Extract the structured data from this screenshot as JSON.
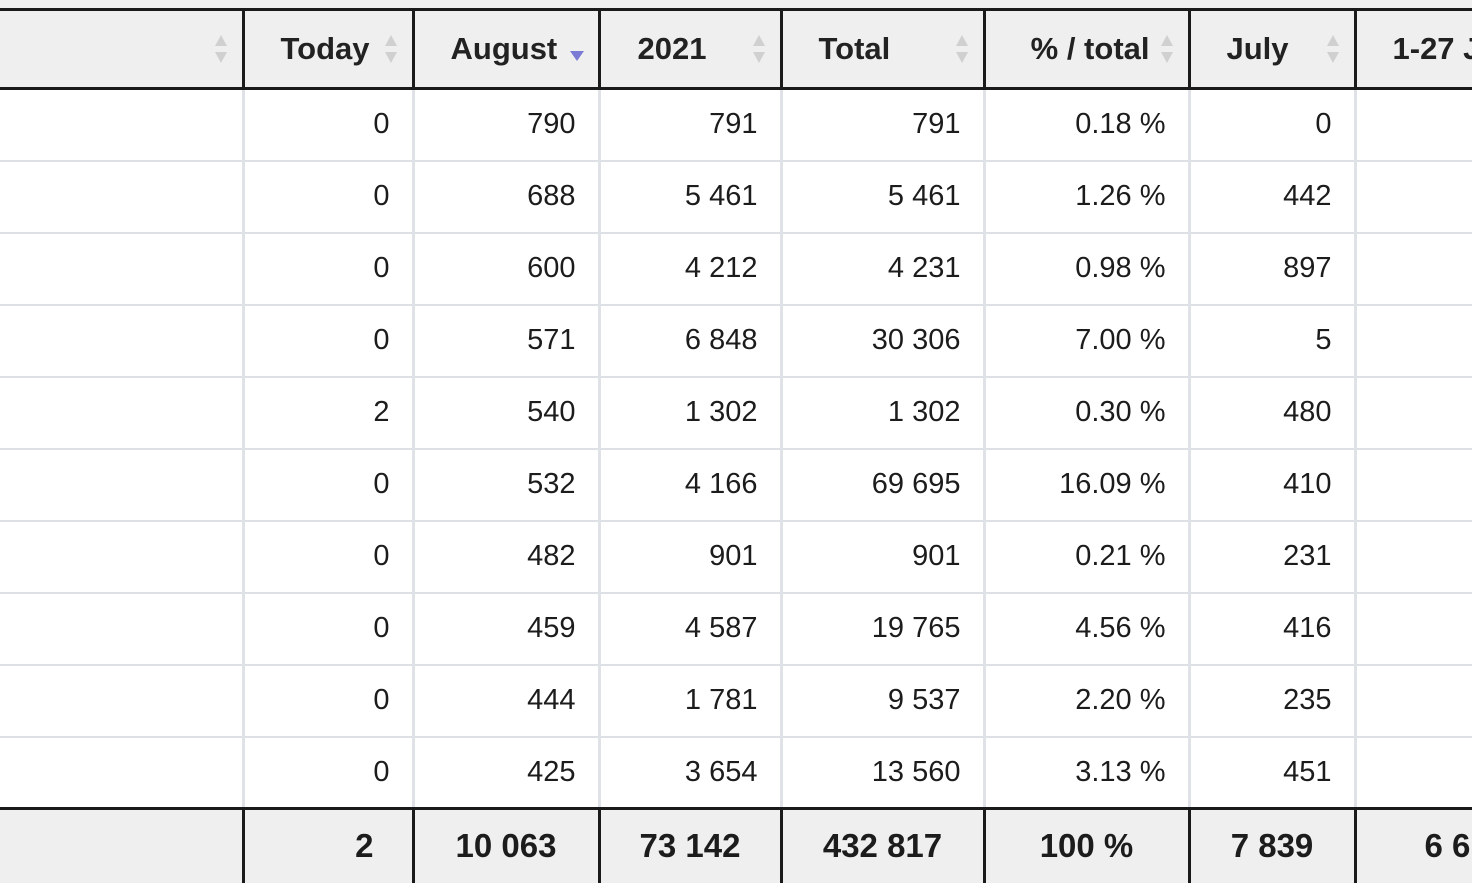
{
  "table": {
    "columns": [
      {
        "key": "label",
        "label": "",
        "sort": "none"
      },
      {
        "key": "today",
        "label": "Today",
        "sort": "none"
      },
      {
        "key": "august",
        "label": "August",
        "sort": "desc"
      },
      {
        "key": "year2021",
        "label": "2021",
        "sort": "none"
      },
      {
        "key": "total",
        "label": "Total",
        "sort": "none"
      },
      {
        "key": "pct_total",
        "label": "% / total",
        "sort": "none"
      },
      {
        "key": "july",
        "label": "July",
        "sort": "none"
      },
      {
        "key": "range",
        "label": "1-27 J",
        "sort": "none"
      }
    ],
    "rows": [
      [
        "",
        "0",
        "790",
        "791",
        "791",
        "0.18 %",
        "0",
        ""
      ],
      [
        "",
        "0",
        "688",
        "5 461",
        "5 461",
        "1.26 %",
        "442",
        ""
      ],
      [
        "",
        "0",
        "600",
        "4 212",
        "4 231",
        "0.98 %",
        "897",
        ""
      ],
      [
        "",
        "0",
        "571",
        "6 848",
        "30 306",
        "7.00 %",
        "5",
        ""
      ],
      [
        "",
        "2",
        "540",
        "1 302",
        "1 302",
        "0.30 %",
        "480",
        ""
      ],
      [
        "",
        "0",
        "532",
        "4 166",
        "69 695",
        "16.09 %",
        "410",
        ""
      ],
      [
        "",
        "0",
        "482",
        "901",
        "901",
        "0.21 %",
        "231",
        ""
      ],
      [
        "",
        "0",
        "459",
        "4 587",
        "19 765",
        "4.56 %",
        "416",
        ""
      ],
      [
        "",
        "0",
        "444",
        "1 781",
        "9 537",
        "2.20 %",
        "235",
        ""
      ],
      [
        "",
        "0",
        "425",
        "3 654",
        "13 560",
        "3.13 %",
        "451",
        ""
      ]
    ],
    "totals": [
      "",
      "2",
      "10 063",
      "73 142",
      "432 817",
      "100 %",
      "7 839",
      "6 6"
    ]
  },
  "colors": {
    "header_bg": "#efefef",
    "sort_active": "#7b7bd6",
    "sort_inactive": "#d0d0d0",
    "grid_line": "#dfe2e6",
    "heavy_border": "#1a1a1a"
  },
  "icons": {
    "sort_neutral": "sort-updown-icon",
    "sort_desc": "sort-desc-icon"
  }
}
